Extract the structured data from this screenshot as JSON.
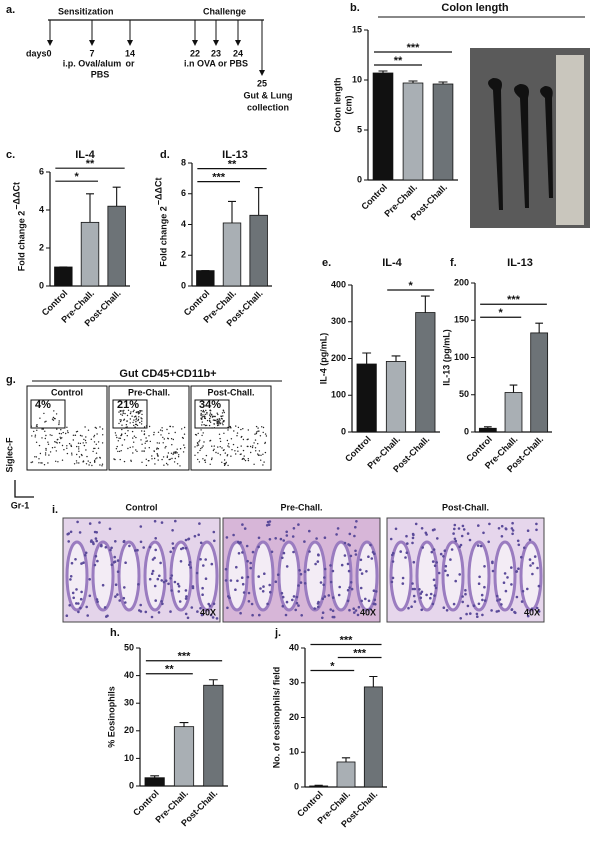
{
  "timeline": {
    "panel": "a.",
    "phase1": "Sensitization",
    "phase2": "Challenge",
    "days": [
      "days0",
      "7",
      "14",
      "22",
      "23",
      "24",
      "25"
    ],
    "notes": [
      "i.p. Oval/alum",
      "or",
      "PBS",
      "i.n OVA or PBS",
      "Gut & Lung",
      "collection"
    ]
  },
  "chart_data": [
    {
      "panel": "b.",
      "type": "bar",
      "title": "Colon length",
      "ylabel": [
        "Colon length",
        "(cm)"
      ],
      "categories": [
        "Control",
        "Pre-Chall.",
        "Post-Chall."
      ],
      "values": [
        10.7,
        9.7,
        9.6
      ],
      "errors": [
        0.2,
        0.2,
        0.2
      ],
      "colors": [
        "#111111",
        "#a9afb4",
        "#6d7377"
      ],
      "ylim": [
        0,
        15
      ],
      "yticks": [
        0,
        5,
        10,
        15
      ],
      "brackets": [
        {
          "from": 0,
          "to": 1,
          "label": "**"
        },
        {
          "from": 0,
          "to": 2,
          "label": "***"
        }
      ]
    },
    {
      "panel": "c.",
      "type": "bar",
      "title": "IL-4",
      "ylabel": "Fold change 2",
      "ylabel_sup": "−ΔΔCt",
      "categories": [
        "Control",
        "Pre-Chall.",
        "Post-Chall."
      ],
      "values": [
        1,
        3.35,
        4.2
      ],
      "errors": [
        0,
        1.5,
        1.0
      ],
      "colors": [
        "#111111",
        "#a9afb4",
        "#6d7377"
      ],
      "ylim": [
        0,
        6
      ],
      "yticks": [
        0,
        2,
        4,
        6
      ],
      "brackets": [
        {
          "from": 0,
          "to": 1,
          "label": "*"
        },
        {
          "from": 0,
          "to": 2,
          "label": "**"
        }
      ]
    },
    {
      "panel": "d.",
      "type": "bar",
      "title": "IL-13",
      "ylabel": "Fold change 2",
      "ylabel_sup": "−ΔΔCt",
      "categories": [
        "Control",
        "Pre-Chall.",
        "Post-Chall."
      ],
      "values": [
        1,
        4.1,
        4.6
      ],
      "errors": [
        0,
        1.4,
        1.8
      ],
      "colors": [
        "#111111",
        "#a9afb4",
        "#6d7377"
      ],
      "ylim": [
        0,
        8
      ],
      "yticks": [
        0,
        2,
        4,
        6,
        8
      ],
      "brackets": [
        {
          "from": 0,
          "to": 1,
          "label": "***"
        },
        {
          "from": 0,
          "to": 2,
          "label": "**"
        }
      ]
    },
    {
      "panel": "e.",
      "type": "bar",
      "title": "IL-4",
      "ylabel": "IL-4 (pg/mL)",
      "categories": [
        "Control",
        "Pre-Chall.",
        "Post-Chall."
      ],
      "values": [
        185,
        192,
        325
      ],
      "errors": [
        30,
        15,
        45
      ],
      "colors": [
        "#111111",
        "#a9afb4",
        "#6d7377"
      ],
      "ylim": [
        0,
        400
      ],
      "yticks": [
        0,
        100,
        200,
        300,
        400
      ],
      "brackets": [
        {
          "from": 1,
          "to": 2,
          "label": "*"
        }
      ]
    },
    {
      "panel": "f.",
      "type": "bar",
      "title": "IL-13",
      "ylabel": "IL-13 (pg/mL)",
      "categories": [
        "Control",
        "Pre-Chall.",
        "Post-Chall."
      ],
      "values": [
        5,
        53,
        133
      ],
      "errors": [
        2,
        10,
        13
      ],
      "colors": [
        "#111111",
        "#a9afb4",
        "#6d7377"
      ],
      "ylim": [
        0,
        200
      ],
      "yticks": [
        0,
        50,
        100,
        150,
        200
      ],
      "brackets": [
        {
          "from": 0,
          "to": 1,
          "label": "*"
        },
        {
          "from": 0,
          "to": 2,
          "label": "***"
        }
      ]
    },
    {
      "panel": "h.",
      "type": "bar",
      "ylabel": "% Eosinophils",
      "categories": [
        "Control",
        "Pre-Chall.",
        "Post-Chall."
      ],
      "values": [
        3,
        21.5,
        36.5
      ],
      "errors": [
        0.7,
        1.5,
        2.0
      ],
      "colors": [
        "#111111",
        "#a9afb4",
        "#6d7377"
      ],
      "ylim": [
        0,
        50
      ],
      "yticks": [
        0,
        10,
        20,
        30,
        40,
        50
      ],
      "brackets": [
        {
          "from": 0,
          "to": 1,
          "label": "**"
        },
        {
          "from": 0,
          "to": 2,
          "label": "***"
        }
      ]
    },
    {
      "panel": "j.",
      "type": "bar",
      "ylabel": "No. of eosinophils/ field",
      "categories": [
        "Control",
        "Pre-Chall.",
        "Post-Chall."
      ],
      "values": [
        0.3,
        7.2,
        28.8
      ],
      "errors": [
        0.2,
        1.2,
        3.0
      ],
      "colors": [
        "#111111",
        "#a9afb4",
        "#6d7377"
      ],
      "ylim": [
        0,
        40
      ],
      "yticks": [
        0,
        10,
        20,
        30,
        40
      ],
      "brackets": [
        {
          "from": 0,
          "to": 1,
          "label": "*"
        },
        {
          "from": 1,
          "to": 2,
          "label": "***"
        },
        {
          "from": 0,
          "to": 2,
          "label": "***"
        }
      ]
    }
  ],
  "flow": {
    "panel": "g.",
    "title": "Gut CD45+CD11b+",
    "plots": [
      {
        "title": "Control",
        "gate": "4%"
      },
      {
        "title": "Pre-Chall.",
        "gate": "21%"
      },
      {
        "title": "Post-Chall.",
        "gate": "34%"
      }
    ],
    "y_axis": "Siglec-F",
    "x_axis": "Gr-1"
  },
  "histology": {
    "panel": "i.",
    "images": [
      {
        "title": "Control",
        "magnification": "40X"
      },
      {
        "title": "Pre-Chall.",
        "magnification": "40X"
      },
      {
        "title": "Post-Chall.",
        "magnification": "40X"
      }
    ]
  }
}
